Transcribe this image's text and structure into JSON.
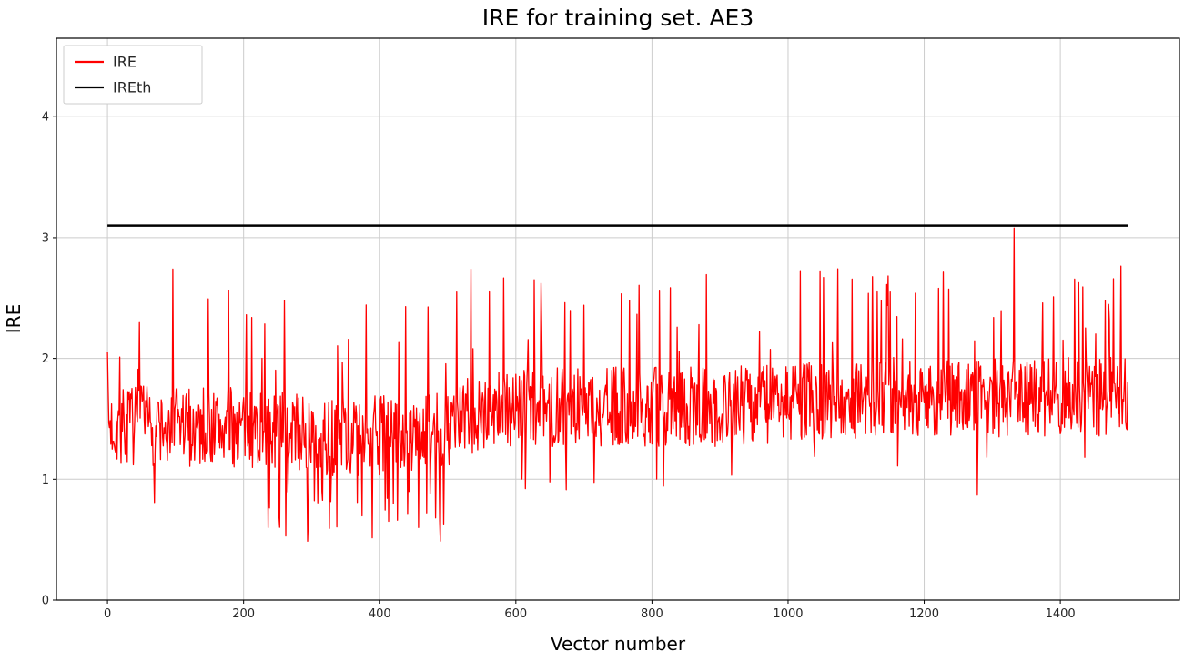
{
  "figure": {
    "background": "#ffffff"
  },
  "chart_data": {
    "type": "line",
    "title": "IRE for training set. AE3",
    "xlabel": "Vector number",
    "ylabel": "IRE",
    "xlim": [
      -75,
      1575
    ],
    "ylim": [
      0,
      4.65
    ],
    "xticks": [
      0,
      200,
      400,
      600,
      800,
      1000,
      1200,
      1400
    ],
    "yticks": [
      0,
      1,
      2,
      3,
      4
    ],
    "grid": true,
    "grid_color": "#cccccc",
    "axis_color": "#000000",
    "tick_color": "#262626",
    "legend": {
      "position": "upper-left",
      "entries": [
        {
          "label": "IRE",
          "color": "#ff0000"
        },
        {
          "label": "IREth",
          "color": "#000000"
        }
      ]
    },
    "series": [
      {
        "name": "IRE",
        "type": "noisy-line",
        "color": "#ff0000",
        "line_width": 1.3,
        "n_points": 1500,
        "seed": 7,
        "mean_profile": [
          [
            0,
            1.45
          ],
          [
            250,
            1.42
          ],
          [
            320,
            1.35
          ],
          [
            480,
            1.38
          ],
          [
            560,
            1.6
          ],
          [
            900,
            1.6
          ],
          [
            1150,
            1.68
          ],
          [
            1500,
            1.68
          ]
        ],
        "noise_half_range": 0.33,
        "spike_up_prob": 0.05,
        "spike_up_extra": [
          0.45,
          1.1
        ],
        "dip_region": [
          230,
          515
        ],
        "dip_prob_in_region": 0.09,
        "dip_prob_elsewhere": 0.018,
        "dip_floor_in": 0.45,
        "dip_floor_out": 0.78,
        "dip_span": 0.45,
        "clip": [
          0.45,
          3.1
        ],
        "forced_points": [
          [
            0,
            2.05
          ],
          [
            96,
            2.74
          ],
          [
            178,
            2.56
          ],
          [
            260,
            2.48
          ],
          [
            438,
            2.43
          ],
          [
            534,
            2.74
          ],
          [
            700,
            2.44
          ],
          [
            869,
            2.28
          ],
          [
            1018,
            2.72
          ],
          [
            1052,
            2.67
          ],
          [
            1150,
            2.55
          ],
          [
            1332,
            3.08
          ],
          [
            1478,
            2.66
          ]
        ]
      },
      {
        "name": "IREth",
        "type": "hline",
        "color": "#000000",
        "line_width": 2.5,
        "value": 3.1,
        "x_range": [
          0,
          1500
        ]
      }
    ]
  }
}
